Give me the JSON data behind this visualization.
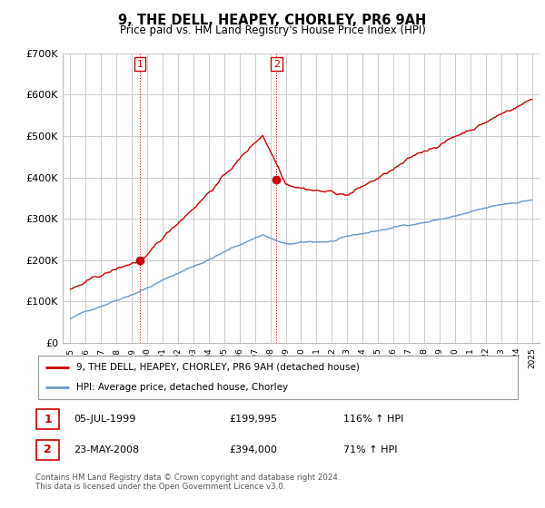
{
  "title": "9, THE DELL, HEAPEY, CHORLEY, PR6 9AH",
  "subtitle": "Price paid vs. HM Land Registry's House Price Index (HPI)",
  "red_label": "9, THE DELL, HEAPEY, CHORLEY, PR6 9AH (detached house)",
  "blue_label": "HPI: Average price, detached house, Chorley",
  "footer": "Contains HM Land Registry data © Crown copyright and database right 2024.\nThis data is licensed under the Open Government Licence v3.0.",
  "sale1_date": "05-JUL-1999",
  "sale1_price": "£199,995",
  "sale1_hpi": "116% ↑ HPI",
  "sale2_date": "23-MAY-2008",
  "sale2_price": "£394,000",
  "sale2_hpi": "71% ↑ HPI",
  "sale1_x": 1999.51,
  "sale1_y": 199995,
  "sale2_x": 2008.39,
  "sale2_y": 394000,
  "ylim": [
    0,
    700000
  ],
  "xlim_left": 1994.5,
  "xlim_right": 2025.5,
  "red_color": "#cc0000",
  "blue_color": "#6699cc",
  "dot_color": "#cc0000",
  "sale_marker_color": "#cc0000",
  "vline_color": "#cc0000",
  "grid_color": "#cccccc",
  "bg_color": "#ffffff"
}
